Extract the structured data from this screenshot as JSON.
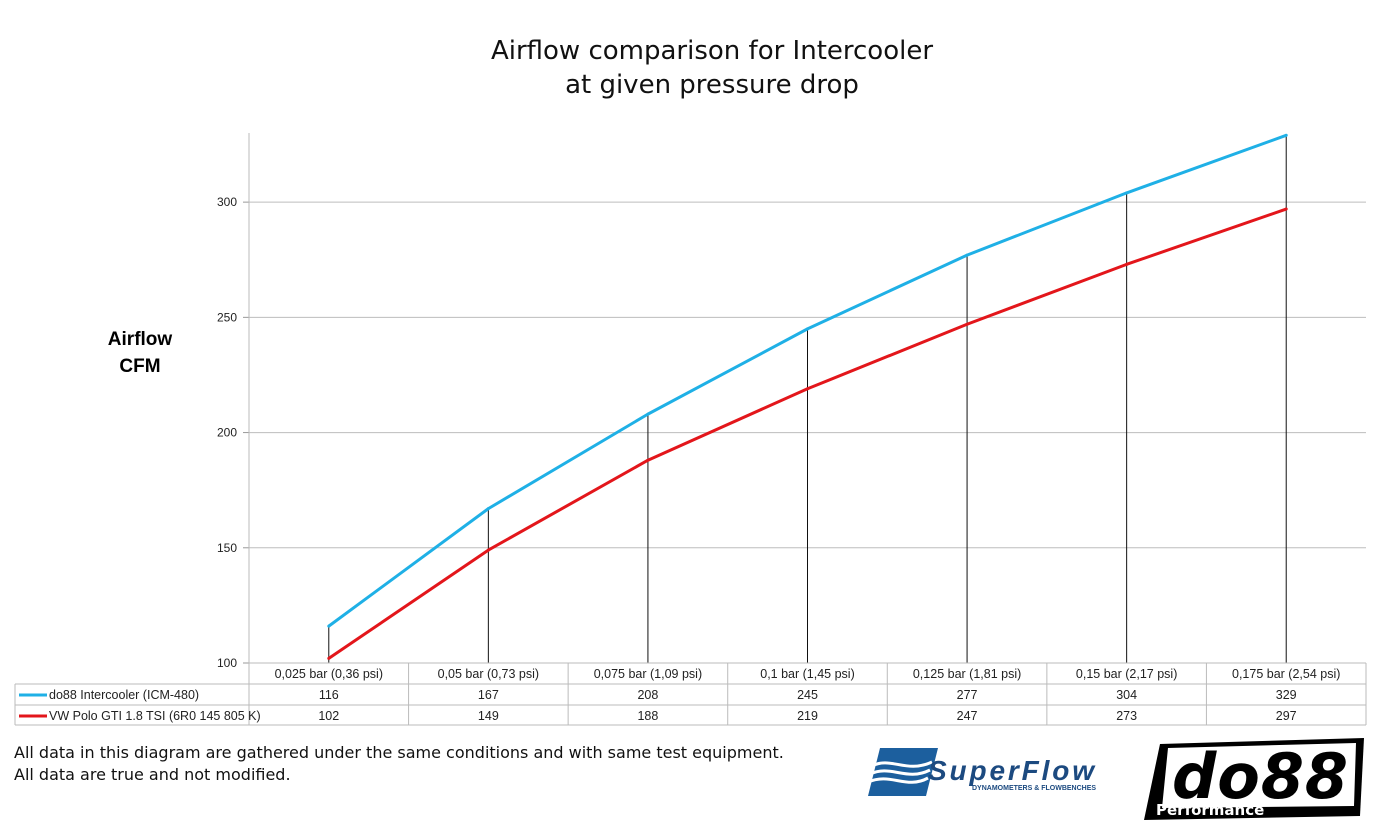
{
  "chart_data": {
    "type": "line",
    "title": [
      "Airflow comparison for Intercooler",
      "at given pressure drop"
    ],
    "ylabel": [
      "Airflow",
      "CFM"
    ],
    "xlabel": "",
    "categories": [
      "0,025 bar (0,36 psi)",
      "0,05 bar (0,73 psi)",
      "0,075 bar (1,09 psi)",
      "0,1 bar (1,45 psi)",
      "0,125 bar (1,81 psi)",
      "0,15 bar (2,17 psi)",
      "0,175 bar (2,54 psi)"
    ],
    "ylim": [
      100,
      330
    ],
    "yticks": [
      100,
      150,
      200,
      250,
      300
    ],
    "grid": true,
    "legend": "data-table-below",
    "series": [
      {
        "name": "do88 Intercooler (ICM-480)",
        "color": "#1fb0e6",
        "values": [
          116,
          167,
          208,
          245,
          277,
          304,
          329
        ]
      },
      {
        "name": "VW Polo GTI 1.8 TSI (6R0 145 805 K)",
        "color": "#e3161b",
        "values": [
          102,
          149,
          188,
          219,
          247,
          273,
          297
        ]
      }
    ]
  },
  "footnote": [
    "All data in this diagram are gathered under the same conditions and with same test equipment.",
    "All data are true and not modified."
  ],
  "logos": {
    "superflow": "SuperFlow",
    "superflow_tagline": "DYNAMOMETERS & FLOWBENCHES",
    "do88": "do88",
    "do88_tagline": "Performance"
  }
}
